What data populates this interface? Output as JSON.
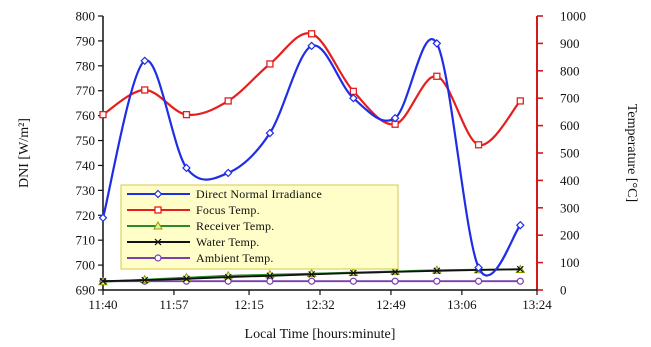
{
  "chart_data": {
    "type": "line",
    "title": "",
    "xlabel": "Local Time [hours:minute]",
    "ylabel_left": "DNI [W/m²]",
    "ylabel_right": "Temperature [°C]",
    "x_ticks": [
      "11:40",
      "11:57",
      "12:15",
      "12:32",
      "12:49",
      "13:06",
      "13:24"
    ],
    "ylim_left": [
      690,
      800
    ],
    "yticks_left": [
      690,
      700,
      710,
      720,
      730,
      740,
      750,
      760,
      770,
      780,
      790,
      800
    ],
    "ylim_right": [
      0,
      1000
    ],
    "yticks_right": [
      0,
      100,
      200,
      300,
      400,
      500,
      600,
      700,
      800,
      900,
      1000
    ],
    "grid": false,
    "legend_position": "bottom-left",
    "series": [
      {
        "name": "Direct Normal Irradiance",
        "axis": "left",
        "color": "#1f2ee6",
        "marker": "diamond",
        "x": [
          "11:40",
          "11:50",
          "12:00",
          "12:10",
          "12:20",
          "12:30",
          "12:40",
          "12:50",
          "13:00",
          "13:10",
          "13:20"
        ],
        "y": [
          719,
          782,
          739,
          737,
          753,
          788,
          767,
          759,
          789,
          699,
          716
        ]
      },
      {
        "name": "Focus Temp.",
        "axis": "right",
        "color": "#e61e1e",
        "marker": "square",
        "x": [
          "11:40",
          "11:50",
          "12:00",
          "12:10",
          "12:20",
          "12:30",
          "12:40",
          "12:50",
          "13:00",
          "13:10",
          "13:20"
        ],
        "y": [
          640,
          730,
          640,
          690,
          825,
          935,
          725,
          605,
          780,
          530,
          690
        ]
      },
      {
        "name": "Receiver Temp.",
        "axis": "right",
        "color": "#2a8a2a",
        "marker": "triangle",
        "x": [
          "11:40",
          "11:50",
          "12:00",
          "12:10",
          "12:20",
          "12:30",
          "12:40",
          "12:50",
          "13:00",
          "13:10",
          "13:20"
        ],
        "y": [
          30,
          38,
          45,
          52,
          56,
          60,
          64,
          68,
          72,
          74,
          75
        ]
      },
      {
        "name": "Water Temp.",
        "axis": "right",
        "color": "#111111",
        "marker": "x",
        "x": [
          "11:40",
          "11:50",
          "12:00",
          "12:10",
          "12:20",
          "12:30",
          "12:40",
          "12:50",
          "13:00",
          "13:10",
          "13:20"
        ],
        "y": [
          32,
          36,
          41,
          47,
          52,
          57,
          62,
          66,
          70,
          73,
          76
        ]
      },
      {
        "name": "Ambient Temp.",
        "axis": "right",
        "color": "#7a3fb0",
        "marker": "circle",
        "x": [
          "11:40",
          "11:50",
          "12:00",
          "12:10",
          "12:20",
          "12:30",
          "12:40",
          "12:50",
          "13:00",
          "13:10",
          "13:20"
        ],
        "y": [
          32,
          32,
          32,
          32,
          32,
          32,
          32,
          32,
          32,
          32,
          32
        ]
      }
    ]
  }
}
